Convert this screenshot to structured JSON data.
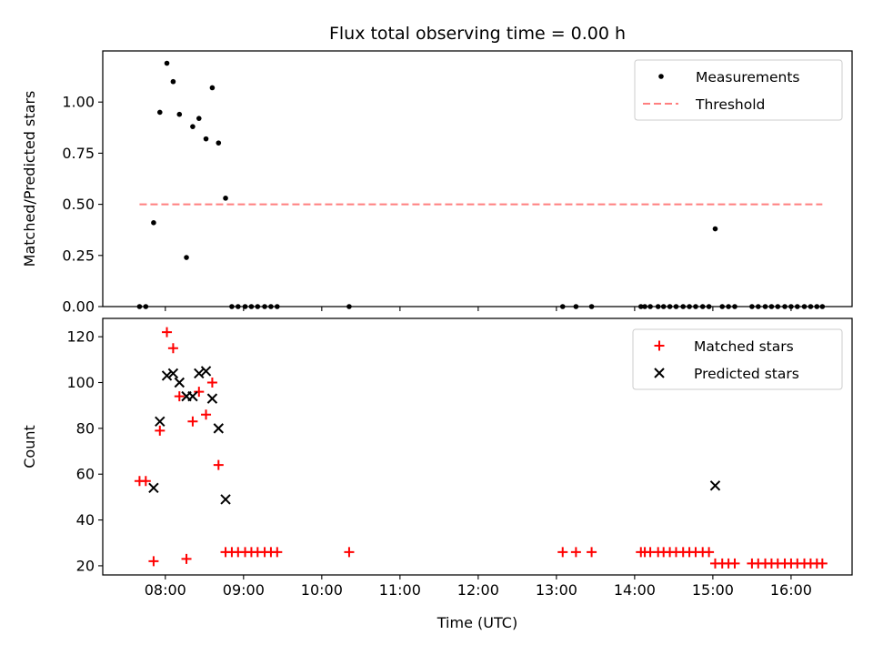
{
  "chart_data": [
    {
      "type": "scatter",
      "title": "Flux total observing time = 0.00 h",
      "xlabel": "",
      "ylabel": "Matched/Predicted stars",
      "xlim": [
        7.2,
        16.78
      ],
      "ylim": [
        0,
        1.25
      ],
      "yticks": [
        0,
        0.25,
        0.5,
        0.75,
        1.0
      ],
      "ytick_labels": [
        "0.00",
        "0.25",
        "0.50",
        "0.75",
        "1.00"
      ],
      "xticks": [
        8,
        9,
        10,
        11,
        12,
        13,
        14,
        15,
        16
      ],
      "legend_position": "upper right",
      "series": [
        {
          "name": "Measurements",
          "marker": "dot",
          "color": "#000000",
          "x": [
            7.67,
            7.75,
            7.85,
            7.93,
            8.02,
            8.1,
            8.18,
            8.27,
            8.35,
            8.43,
            8.52,
            8.6,
            8.68,
            8.77,
            8.85,
            8.93,
            9.02,
            9.1,
            9.18,
            9.27,
            9.35,
            9.43,
            10.35,
            13.08,
            13.25,
            13.45,
            14.08,
            14.13,
            14.2,
            14.3,
            14.37,
            14.45,
            14.53,
            14.62,
            14.7,
            14.78,
            14.87,
            14.95,
            15.03,
            15.12,
            15.2,
            15.28,
            15.5,
            15.58,
            15.67,
            15.75,
            15.83,
            15.92,
            16.0,
            16.08,
            16.17,
            16.25,
            16.33,
            16.4
          ],
          "y": [
            0,
            0,
            0.41,
            0.95,
            1.19,
            1.1,
            0.94,
            0.24,
            0.88,
            0.92,
            0.82,
            1.07,
            0.8,
            0.53,
            0,
            0,
            0,
            0,
            0,
            0,
            0,
            0,
            0,
            0,
            0,
            0,
            0,
            0,
            0,
            0,
            0,
            0,
            0,
            0,
            0,
            0,
            0,
            0,
            0.38,
            0,
            0,
            0,
            0,
            0,
            0,
            0,
            0,
            0,
            0,
            0,
            0,
            0,
            0,
            0
          ]
        },
        {
          "name": "Threshold",
          "line_style": "dashed",
          "color": "#ff7f7f",
          "x": [
            7.67,
            16.4
          ],
          "y": [
            0.5,
            0.5
          ]
        }
      ]
    },
    {
      "type": "scatter",
      "title": "",
      "xlabel": "Time (UTC)",
      "ylabel": "Count",
      "xlim": [
        7.2,
        16.78
      ],
      "ylim": [
        16,
        128
      ],
      "yticks": [
        20,
        40,
        60,
        80,
        100,
        120
      ],
      "ytick_labels": [
        "20",
        "40",
        "60",
        "80",
        "100",
        "120"
      ],
      "xticks": [
        8,
        9,
        10,
        11,
        12,
        13,
        14,
        15,
        16
      ],
      "xtick_labels": [
        "08:00",
        "09:00",
        "10:00",
        "11:00",
        "12:00",
        "13:00",
        "14:00",
        "15:00",
        "16:00"
      ],
      "legend_position": "upper right",
      "series": [
        {
          "name": "Matched stars",
          "marker": "plus",
          "color": "#ff0000",
          "x": [
            7.67,
            7.75,
            7.85,
            7.93,
            8.02,
            8.1,
            8.18,
            8.27,
            8.35,
            8.43,
            8.52,
            8.6,
            8.68,
            8.77,
            8.85,
            8.93,
            9.02,
            9.1,
            9.18,
            9.27,
            9.35,
            9.43,
            10.35,
            13.08,
            13.25,
            13.45,
            14.08,
            14.13,
            14.2,
            14.3,
            14.37,
            14.45,
            14.53,
            14.62,
            14.7,
            14.78,
            14.87,
            14.95,
            15.03,
            15.12,
            15.2,
            15.28,
            15.5,
            15.58,
            15.67,
            15.75,
            15.83,
            15.92,
            16.0,
            16.08,
            16.17,
            16.25,
            16.33,
            16.4
          ],
          "y": [
            57,
            57,
            22,
            79,
            122,
            115,
            94,
            23,
            83,
            96,
            86,
            100,
            64,
            26,
            26,
            26,
            26,
            26,
            26,
            26,
            26,
            26,
            26,
            26,
            26,
            26,
            26,
            26,
            26,
            26,
            26,
            26,
            26,
            26,
            26,
            26,
            26,
            26,
            21,
            21,
            21,
            21,
            21,
            21,
            21,
            21,
            21,
            21,
            21,
            21,
            21,
            21,
            21,
            21
          ]
        },
        {
          "name": "Predicted stars",
          "marker": "x",
          "color": "#000000",
          "x": [
            7.85,
            7.93,
            8.02,
            8.1,
            8.18,
            8.27,
            8.35,
            8.43,
            8.52,
            8.6,
            8.68,
            8.77,
            15.03
          ],
          "y": [
            54,
            83,
            103,
            104,
            100,
            94,
            94,
            104,
            105,
            93,
            80,
            49,
            55
          ]
        }
      ]
    }
  ]
}
